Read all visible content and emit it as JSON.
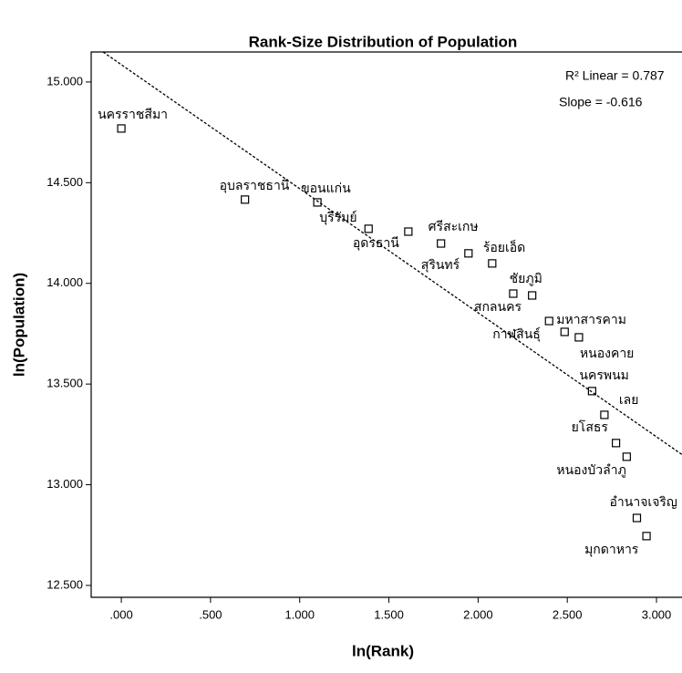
{
  "chart_data": {
    "type": "scatter",
    "title": "Rank-Size Distribution of Population",
    "x_label": "ln(Rank)",
    "y_label": "ln(Population)",
    "x": [
      0,
      0.693,
      1.099,
      1.386,
      1.609,
      1.792,
      1.946,
      2.079,
      2.197,
      2.303,
      2.398,
      2.485,
      2.565,
      2.639,
      2.708,
      2.773,
      2.833,
      2.89,
      2.944
    ],
    "values": [
      14.769,
      14.416,
      14.402,
      14.271,
      14.257,
      14.198,
      14.149,
      14.099,
      13.949,
      13.94,
      13.813,
      13.759,
      13.732,
      13.465,
      13.347,
      13.207,
      13.139,
      12.835,
      12.745
    ],
    "point_labels": [
      "นครราชสีมา",
      "อุบลราชธานี",
      "ขอนแก่น",
      "บุรีรัมย์",
      "อุดรธานี",
      "ศรีสะเกษ",
      "สุรินทร์",
      "ร้อยเอ็ด",
      "สกลนคร",
      "ชัยภูมิ",
      "มหาสารคาม",
      "กาฬสินธุ์",
      "หนองคาย",
      "นครพนม",
      "เลย",
      "ยโสธร",
      "หนองบัวลำภู",
      "อำนาจเจริญ",
      "มุกดาหาร"
    ],
    "fit_line": {
      "intercept": 15.086,
      "slope": -0.616
    },
    "annotations": [
      "R² Linear = 0.787",
      "Slope = -0.616"
    ],
    "xlim": [
      -0.169,
      3.143
    ],
    "ylim": [
      12.441,
      15.149
    ],
    "xticks": [
      {
        "value": 0,
        "label": ".000"
      },
      {
        "value": 0.5,
        "label": ".500"
      },
      {
        "value": 1,
        "label": "1.000"
      },
      {
        "value": 1.5,
        "label": "1.500"
      },
      {
        "value": 2,
        "label": "2.000"
      },
      {
        "value": 2.5,
        "label": "2.500"
      },
      {
        "value": 3,
        "label": "3.000"
      }
    ],
    "yticks": [
      {
        "value": 12.5,
        "label": "12.500"
      },
      {
        "value": 13,
        "label": "13.000"
      },
      {
        "value": 13.5,
        "label": "13.500"
      },
      {
        "value": 14,
        "label": "14.000"
      },
      {
        "value": 14.5,
        "label": "14.500"
      },
      {
        "value": 15,
        "label": "15.000"
      }
    ],
    "color": "#000000"
  }
}
